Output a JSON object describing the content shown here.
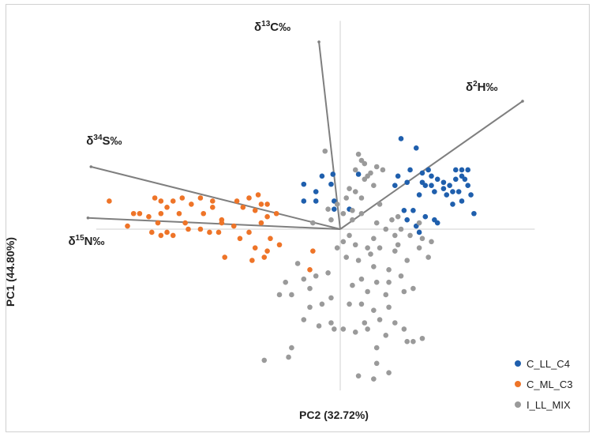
{
  "chart_data": {
    "type": "scatter",
    "title": "",
    "xlabel": "PC2 (32.72%)",
    "ylabel": "PC1 (44.80%)",
    "xlim": [
      -4.3,
      3.2
    ],
    "ylim": [
      -2.9,
      3.4
    ],
    "grid": false,
    "legend_position": "bottom-right",
    "loadings": [
      {
        "name": "d13C",
        "label": "δ13C‰",
        "symbol": "δ",
        "sup": "13",
        "element": "C‰",
        "x": -0.35,
        "y": 3.0
      },
      {
        "name": "d2H",
        "label": "δ2H‰",
        "symbol": "δ",
        "sup": "2",
        "element": "H‰",
        "x": 3.0,
        "y": 2.05
      },
      {
        "name": "d34S",
        "label": "δ34S‰",
        "symbol": "δ",
        "sup": "34",
        "element": "S‰",
        "x": -4.1,
        "y": 1.0
      },
      {
        "name": "d15N",
        "label": "δ15N‰",
        "symbol": "δ",
        "sup": "15",
        "element": "N‰",
        "x": -4.15,
        "y": 0.18
      }
    ],
    "series": [
      {
        "name": "C_LL_C4",
        "color": "#1f5fad",
        "points": [
          [
            1.0,
            1.45
          ],
          [
            1.25,
            1.3
          ],
          [
            1.35,
            0.9
          ],
          [
            1.45,
            0.95
          ],
          [
            1.5,
            0.85
          ],
          [
            1.6,
            0.8
          ],
          [
            1.7,
            0.75
          ],
          [
            1.4,
            0.7
          ],
          [
            1.55,
            0.6
          ],
          [
            1.75,
            0.55
          ],
          [
            1.3,
            0.55
          ],
          [
            1.1,
            0.75
          ],
          [
            0.95,
            0.85
          ],
          [
            1.15,
            0.95
          ],
          [
            0.9,
            0.7
          ],
          [
            1.9,
            0.8
          ],
          [
            2.0,
            0.85
          ],
          [
            2.05,
            0.8
          ],
          [
            2.1,
            0.7
          ],
          [
            1.95,
            0.6
          ],
          [
            2.15,
            0.55
          ],
          [
            2.0,
            0.45
          ],
          [
            1.85,
            0.4
          ],
          [
            2.2,
            0.25
          ],
          [
            1.2,
            0.3
          ],
          [
            1.05,
            0.3
          ],
          [
            1.4,
            0.2
          ],
          [
            1.55,
            0.15
          ],
          [
            1.6,
            0.1
          ],
          [
            1.25,
            0.05
          ],
          [
            1.3,
            -0.05
          ],
          [
            1.1,
            0.15
          ],
          [
            2.1,
            0.95
          ],
          [
            2.0,
            0.95
          ],
          [
            1.9,
            0.95
          ],
          [
            1.8,
            0.7
          ],
          [
            1.7,
            0.65
          ],
          [
            1.5,
            0.7
          ],
          [
            1.35,
            0.75
          ],
          [
            1.85,
            0.6
          ],
          [
            -0.4,
            0.6
          ],
          [
            -0.6,
            0.45
          ],
          [
            -0.6,
            0.72
          ],
          [
            -0.4,
            0.45
          ],
          [
            -0.3,
            0.85
          ],
          [
            -0.15,
            0.72
          ],
          [
            -0.1,
            0.45
          ],
          [
            -0.1,
            0.32
          ],
          [
            0.15,
            0.32
          ],
          [
            0.3,
            0.88
          ],
          [
            -0.12,
            0.88
          ]
        ]
      },
      {
        "name": "C_ML_C3",
        "color": "#ee7428",
        "points": [
          [
            -3.8,
            0.45
          ],
          [
            -3.4,
            0.25
          ],
          [
            -3.3,
            0.25
          ],
          [
            -3.05,
            0.5
          ],
          [
            -2.95,
            0.25
          ],
          [
            -2.85,
            0.35
          ],
          [
            -2.75,
            0.45
          ],
          [
            -2.6,
            0.5
          ],
          [
            -2.45,
            0.4
          ],
          [
            -2.25,
            0.25
          ],
          [
            -2.1,
            0.35
          ],
          [
            -1.95,
            0.15
          ],
          [
            -1.7,
            0.45
          ],
          [
            -1.5,
            0.5
          ],
          [
            -1.3,
            0.4
          ],
          [
            -1.2,
            0.2
          ],
          [
            -1.05,
            0.25
          ],
          [
            -3.5,
            0.05
          ],
          [
            -3.0,
            0.1
          ],
          [
            -2.85,
            -0.05
          ],
          [
            -2.55,
            0.1
          ],
          [
            -2.3,
            0.0
          ],
          [
            -2.15,
            -0.05
          ],
          [
            -1.95,
            0.1
          ],
          [
            -1.75,
            0.05
          ],
          [
            -1.5,
            -0.05
          ],
          [
            -1.3,
            0.1
          ],
          [
            -1.15,
            -0.15
          ],
          [
            -3.1,
            -0.05
          ],
          [
            -2.95,
            -0.1
          ],
          [
            -2.75,
            -0.1
          ],
          [
            -2.5,
            0.0
          ],
          [
            -2.0,
            -0.05
          ],
          [
            -1.65,
            -0.15
          ],
          [
            -1.4,
            -0.3
          ],
          [
            -1.2,
            -0.35
          ],
          [
            -1.0,
            -0.25
          ],
          [
            -1.25,
            -0.45
          ],
          [
            -1.45,
            -0.5
          ],
          [
            -1.9,
            -0.45
          ],
          [
            -0.5,
            -0.65
          ],
          [
            -1.2,
            0.4
          ],
          [
            -1.4,
            0.3
          ],
          [
            -2.3,
            0.5
          ],
          [
            -2.1,
            0.45
          ],
          [
            -1.35,
            0.55
          ],
          [
            -3.15,
            0.2
          ],
          [
            -1.6,
            0.35
          ],
          [
            -2.65,
            0.25
          ],
          [
            -2.95,
            0.45
          ],
          [
            -0.45,
            -0.35
          ]
        ]
      },
      {
        "name": "I_LL_MIX",
        "color": "#9a9a9a",
        "points": [
          [
            0.35,
            1.1
          ],
          [
            0.4,
            1.05
          ],
          [
            0.25,
            0.95
          ],
          [
            0.45,
            0.85
          ],
          [
            0.55,
            0.7
          ],
          [
            0.25,
            0.6
          ],
          [
            0.1,
            0.5
          ],
          [
            -0.05,
            0.4
          ],
          [
            0.05,
            0.25
          ],
          [
            0.2,
            0.3
          ],
          [
            0.35,
            0.25
          ],
          [
            0.6,
            0.1
          ],
          [
            0.75,
            0.0
          ],
          [
            0.85,
            0.15
          ],
          [
            1.0,
            0.0
          ],
          [
            1.15,
            -0.1
          ],
          [
            1.35,
            -0.15
          ],
          [
            1.5,
            -0.2
          ],
          [
            1.3,
            0.1
          ],
          [
            0.95,
            0.2
          ],
          [
            0.15,
            -0.1
          ],
          [
            0.05,
            -0.2
          ],
          [
            0.25,
            -0.25
          ],
          [
            0.45,
            -0.3
          ],
          [
            0.65,
            -0.3
          ],
          [
            0.9,
            -0.35
          ],
          [
            1.1,
            -0.5
          ],
          [
            1.3,
            -0.3
          ],
          [
            1.45,
            -0.45
          ],
          [
            0.1,
            -0.45
          ],
          [
            0.3,
            -0.5
          ],
          [
            0.55,
            -0.6
          ],
          [
            0.8,
            -0.65
          ],
          [
            1.0,
            -0.75
          ],
          [
            0.35,
            -0.8
          ],
          [
            0.6,
            -0.85
          ],
          [
            0.2,
            -0.9
          ],
          [
            0.45,
            -1.0
          ],
          [
            0.75,
            -1.05
          ],
          [
            1.05,
            -1.0
          ],
          [
            -0.2,
            -0.7
          ],
          [
            -0.4,
            -0.75
          ],
          [
            -0.6,
            -0.8
          ],
          [
            -0.9,
            -0.85
          ],
          [
            -1.0,
            -1.05
          ],
          [
            -0.8,
            -1.05
          ],
          [
            -0.5,
            -0.95
          ],
          [
            -0.3,
            -1.2
          ],
          [
            -0.5,
            -1.25
          ],
          [
            -0.6,
            -1.45
          ],
          [
            -0.35,
            -1.55
          ],
          [
            -0.15,
            -1.5
          ],
          [
            0.05,
            -1.6
          ],
          [
            0.4,
            -1.5
          ],
          [
            0.65,
            -1.45
          ],
          [
            0.9,
            -1.5
          ],
          [
            1.2,
            -1.8
          ],
          [
            1.35,
            -1.75
          ],
          [
            1.1,
            -1.8
          ],
          [
            0.75,
            -1.7
          ],
          [
            0.6,
            -1.9
          ],
          [
            0.25,
            -1.65
          ],
          [
            -0.1,
            -1.6
          ],
          [
            -0.8,
            -1.9
          ],
          [
            0.55,
            -1.3
          ],
          [
            0.35,
            -1.2
          ],
          [
            0.8,
            -1.25
          ],
          [
            -0.15,
            -1.1
          ],
          [
            0.15,
            -1.2
          ],
          [
            1.05,
            -1.6
          ],
          [
            0.45,
            -1.6
          ],
          [
            0.8,
            -2.3
          ],
          [
            -0.85,
            -2.05
          ],
          [
            0.3,
            -2.35
          ],
          [
            0.6,
            -2.15
          ],
          [
            -1.25,
            -2.1
          ],
          [
            0.55,
            -2.4
          ],
          [
            0.4,
            0.8
          ],
          [
            0.5,
            0.9
          ],
          [
            0.6,
            1.0
          ],
          [
            0.3,
            1.2
          ],
          [
            -0.25,
            1.25
          ],
          [
            0.7,
            0.95
          ],
          [
            0.15,
            0.65
          ],
          [
            -0.2,
            0.32
          ],
          [
            0.55,
            -0.15
          ],
          [
            0.9,
            -0.1
          ],
          [
            0.2,
            0.15
          ],
          [
            -0.15,
            0.15
          ],
          [
            -0.45,
            0.1
          ],
          [
            0.35,
            0.5
          ],
          [
            0.65,
            0.4
          ],
          [
            0.8,
            -0.85
          ],
          [
            1.2,
            -0.95
          ],
          [
            -0.7,
            -0.55
          ],
          [
            0.5,
            -0.4
          ],
          [
            -0.05,
            -0.3
          ],
          [
            0.95,
            -0.25
          ]
        ]
      }
    ]
  }
}
